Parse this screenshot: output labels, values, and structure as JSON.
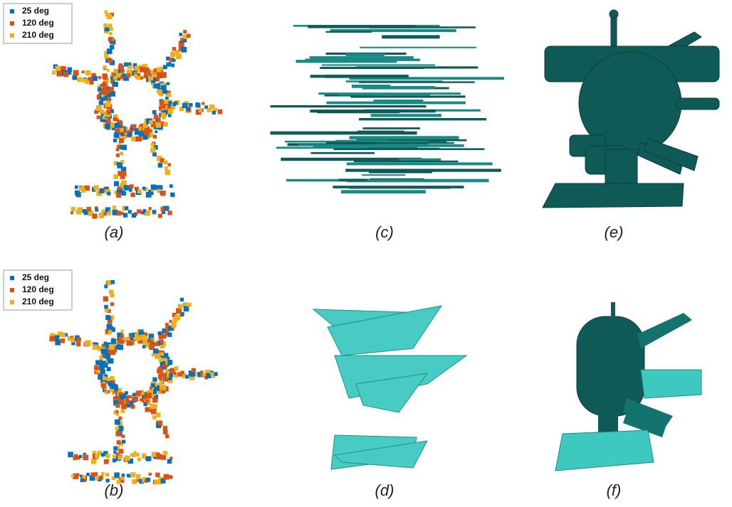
{
  "panels": [
    {
      "label": "(a)",
      "legend": [
        {
          "name": "25 deg",
          "color": "#0072bd"
        },
        {
          "name": "120 deg",
          "color": "#d95319"
        },
        {
          "name": "210 deg",
          "color": "#edb120"
        }
      ]
    },
    {
      "label": "(b)",
      "legend": [
        {
          "name": "25 deg",
          "color": "#0072bd"
        },
        {
          "name": "120 deg",
          "color": "#d95319"
        },
        {
          "name": "210 deg",
          "color": "#edb120"
        }
      ]
    },
    {
      "label": "(c)"
    },
    {
      "label": "(d)"
    },
    {
      "label": "(e)"
    },
    {
      "label": "(f)"
    }
  ]
}
